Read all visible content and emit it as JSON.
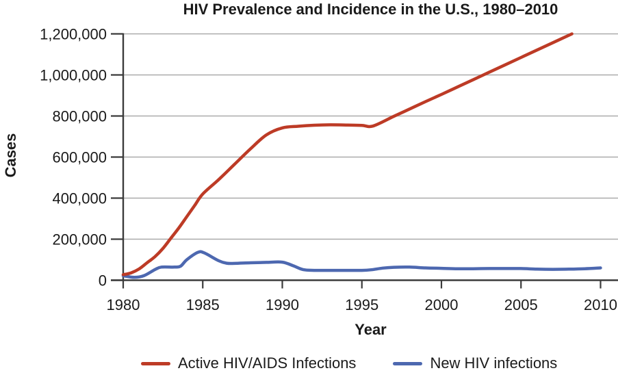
{
  "chart_data": {
    "type": "line",
    "title": "HIV Prevalence and Incidence in the U.S., 1980–2010",
    "xlabel": "Year",
    "ylabel": "Cases",
    "x_range": [
      1980,
      2010
    ],
    "y_range": [
      0,
      1200000
    ],
    "x_ticks": [
      1980,
      1985,
      1990,
      1995,
      2000,
      2005,
      2010
    ],
    "y_ticks": [
      {
        "value": 0,
        "label": "0"
      },
      {
        "value": 200000,
        "label": "200,000"
      },
      {
        "value": 400000,
        "label": "400,000"
      },
      {
        "value": 600000,
        "label": "600,000"
      },
      {
        "value": 800000,
        "label": "800,000"
      },
      {
        "value": 1000000,
        "label": "1,000,000"
      },
      {
        "value": 1200000,
        "label": "1,200,000"
      }
    ],
    "grid": "horizontal",
    "legend_position": "bottom",
    "axis_color": "#3b3b3b",
    "grid_color": "#aaaaaa",
    "text_color": "#1a1a1a",
    "series": [
      {
        "name": "Active HIV/AIDS Infections",
        "color": "#bd3b26",
        "points": [
          [
            1980,
            27000
          ],
          [
            1980.5,
            36000
          ],
          [
            1981,
            55000
          ],
          [
            1981.5,
            85000
          ],
          [
            1982,
            115000
          ],
          [
            1982.5,
            155000
          ],
          [
            1983,
            205000
          ],
          [
            1983.5,
            255000
          ],
          [
            1984,
            310000
          ],
          [
            1984.5,
            365000
          ],
          [
            1985,
            420000
          ],
          [
            1986,
            490000
          ],
          [
            1987,
            565000
          ],
          [
            1988,
            640000
          ],
          [
            1989,
            708000
          ],
          [
            1990,
            742000
          ],
          [
            1991,
            750000
          ],
          [
            1992,
            755000
          ],
          [
            1993,
            757000
          ],
          [
            1994,
            756000
          ],
          [
            1995,
            754000
          ],
          [
            1995.7,
            751000
          ],
          [
            1997,
            798000
          ],
          [
            1998,
            834000
          ],
          [
            1999,
            870000
          ],
          [
            2000,
            905000
          ],
          [
            2001,
            941000
          ],
          [
            2002,
            977000
          ],
          [
            2003,
            1013000
          ],
          [
            2004,
            1049000
          ],
          [
            2005,
            1085000
          ],
          [
            2006,
            1121000
          ],
          [
            2007,
            1157000
          ],
          [
            2008.2,
            1200000
          ]
        ]
      },
      {
        "name": "New HIV infections",
        "color": "#4d68b0",
        "points": [
          [
            1980,
            22000
          ],
          [
            1980.7,
            14000
          ],
          [
            1981.3,
            22000
          ],
          [
            1982,
            52000
          ],
          [
            1982.4,
            64000
          ],
          [
            1983.2,
            64000
          ],
          [
            1983.6,
            68000
          ],
          [
            1984,
            100000
          ],
          [
            1984.7,
            136000
          ],
          [
            1985.1,
            133000
          ],
          [
            1986,
            95000
          ],
          [
            1986.5,
            83000
          ],
          [
            1987,
            82000
          ],
          [
            1988,
            85000
          ],
          [
            1989,
            87000
          ],
          [
            1990,
            88000
          ],
          [
            1990.7,
            70000
          ],
          [
            1991.3,
            52000
          ],
          [
            1992,
            48000
          ],
          [
            1993,
            48000
          ],
          [
            1994,
            48000
          ],
          [
            1995,
            48000
          ],
          [
            1995.6,
            51000
          ],
          [
            1996.3,
            59000
          ],
          [
            1997,
            63000
          ],
          [
            1998,
            64000
          ],
          [
            1999,
            60000
          ],
          [
            2000,
            58000
          ],
          [
            2001,
            56000
          ],
          [
            2002,
            56000
          ],
          [
            2003,
            57000
          ],
          [
            2004,
            57000
          ],
          [
            2005,
            57000
          ],
          [
            2006,
            54000
          ],
          [
            2007,
            53000
          ],
          [
            2008,
            54000
          ],
          [
            2009,
            56000
          ],
          [
            2010,
            60000
          ]
        ]
      }
    ]
  }
}
